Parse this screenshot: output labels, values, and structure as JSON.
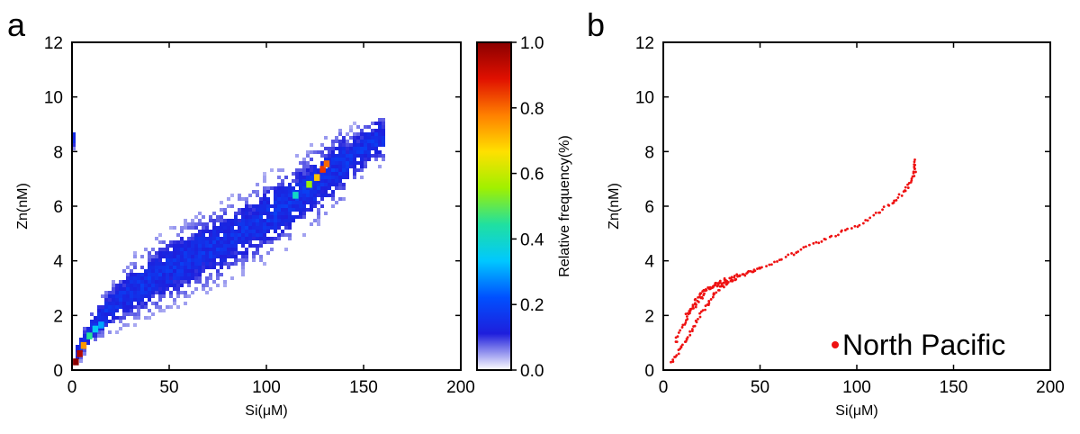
{
  "chart_data": [
    {
      "panel": "a",
      "type": "heatmap",
      "xlabel": "Si(μM)",
      "ylabel": "Zn(nM)",
      "xlim": [
        0,
        200
      ],
      "ylim": [
        0,
        12
      ],
      "xticks": [
        "0",
        "50",
        "100",
        "150",
        "200"
      ],
      "yticks": [
        "0",
        "2",
        "4",
        "6",
        "8",
        "10",
        "12"
      ],
      "colorbar": {
        "label": "Relative frequency(%)",
        "range": [
          0.0,
          1.0
        ],
        "ticks": [
          "0.0",
          "0.2",
          "0.4",
          "0.6",
          "0.8",
          "1.0"
        ],
        "colors": [
          "#ffffff",
          "#1e1edc",
          "#0050ff",
          "#00c8ff",
          "#20e0a0",
          "#a0f000",
          "#ffe000",
          "#ff8000",
          "#e01000",
          "#8b0000"
        ]
      },
      "density_ridge": [
        [
          2,
          0.5
        ],
        [
          5,
          0.9
        ],
        [
          10,
          1.5
        ],
        [
          20,
          2.3
        ],
        [
          30,
          2.85
        ],
        [
          40,
          3.3
        ],
        [
          50,
          3.7
        ],
        [
          60,
          4.05
        ],
        [
          70,
          4.4
        ],
        [
          80,
          4.75
        ],
        [
          90,
          5.15
        ],
        [
          100,
          5.55
        ],
        [
          110,
          6.0
        ],
        [
          120,
          6.5
        ],
        [
          130,
          7.05
        ],
        [
          140,
          7.6
        ],
        [
          150,
          8.1
        ],
        [
          158,
          8.5
        ]
      ],
      "hotspots": [
        {
          "x": 2,
          "y": 0.3,
          "freq": 1.0
        },
        {
          "x": 4,
          "y": 0.6,
          "freq": 0.95
        },
        {
          "x": 6,
          "y": 0.9,
          "freq": 0.75
        },
        {
          "x": 9,
          "y": 1.25,
          "freq": 0.45
        },
        {
          "x": 12,
          "y": 1.5,
          "freq": 0.35
        },
        {
          "x": 15,
          "y": 1.65,
          "freq": 0.3
        },
        {
          "x": 115,
          "y": 6.4,
          "freq": 0.4
        },
        {
          "x": 122,
          "y": 6.8,
          "freq": 0.55
        },
        {
          "x": 126,
          "y": 7.05,
          "freq": 0.7
        },
        {
          "x": 129,
          "y": 7.35,
          "freq": 0.85
        },
        {
          "x": 131,
          "y": 7.55,
          "freq": 0.8
        }
      ]
    },
    {
      "panel": "b",
      "type": "scatter",
      "xlabel": "Si(μM)",
      "ylabel": "Zn(nM)",
      "xlim": [
        0,
        200
      ],
      "ylim": [
        0,
        12
      ],
      "xticks": [
        "0",
        "50",
        "100",
        "150",
        "200"
      ],
      "yticks": [
        "0",
        "2",
        "4",
        "6",
        "8",
        "10",
        "12"
      ],
      "legend_position": "bottom-right",
      "series": [
        {
          "name": "North Pacific",
          "color": "#ee1111",
          "branches": [
            [
              [
                4,
                0.3
              ],
              [
                8,
                0.7
              ],
              [
                12,
                1.1
              ],
              [
                16,
                1.6
              ],
              [
                20,
                2.1
              ],
              [
                24,
                2.55
              ],
              [
                28,
                2.95
              ],
              [
                32,
                3.15
              ],
              [
                36,
                3.3
              ],
              [
                40,
                3.45
              ],
              [
                45,
                3.6
              ],
              [
                50,
                3.72
              ]
            ],
            [
              [
                6,
                1.0
              ],
              [
                10,
                1.6
              ],
              [
                14,
                2.1
              ],
              [
                18,
                2.5
              ],
              [
                22,
                2.85
              ],
              [
                27,
                3.1
              ],
              [
                32,
                3.3
              ],
              [
                38,
                3.5
              ]
            ],
            [
              [
                12,
                2.0
              ],
              [
                16,
                2.5
              ],
              [
                20,
                2.85
              ],
              [
                24,
                3.05
              ],
              [
                28,
                3.15
              ],
              [
                33,
                3.25
              ]
            ],
            [
              [
                50,
                3.72
              ],
              [
                60,
                4.05
              ],
              [
                70,
                4.35
              ],
              [
                80,
                4.7
              ],
              [
                90,
                5.0
              ],
              [
                100,
                5.3
              ],
              [
                110,
                5.7
              ],
              [
                118,
                6.1
              ],
              [
                124,
                6.5
              ],
              [
                128,
                6.9
              ],
              [
                130,
                7.3
              ],
              [
                130,
                7.7
              ]
            ]
          ]
        }
      ]
    }
  ],
  "labels": {
    "panel_a": "a",
    "panel_b": "b"
  }
}
